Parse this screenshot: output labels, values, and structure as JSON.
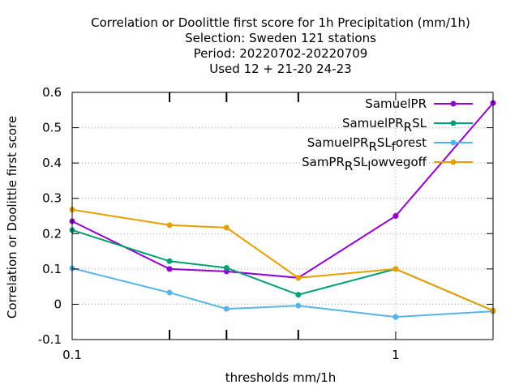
{
  "chart_data": {
    "type": "line",
    "title_lines": [
      "Correlation or Doolittle first score  for 1h Precipitation (mm/1h)",
      "Selection: Sweden    121 stations",
      "Period: 20220702-20220709",
      "Used  12 + 21-20 24-23"
    ],
    "xlabel": "thresholds mm/1h",
    "ylabel": "Correlation or Doolittle first score",
    "x_scale": "log",
    "xlim": [
      0.1,
      2
    ],
    "ylim": [
      -0.1,
      0.6
    ],
    "x_ticks": [
      {
        "value": 0.1,
        "label": "0.1"
      },
      {
        "value": 1,
        "label": "1"
      }
    ],
    "x_minor_ticks": [
      0.2,
      0.3,
      0.5
    ],
    "y_ticks": [
      {
        "value": -0.1,
        "label": "-0.1"
      },
      {
        "value": 0,
        "label": "0"
      },
      {
        "value": 0.1,
        "label": "0.1"
      },
      {
        "value": 0.2,
        "label": "0.2"
      },
      {
        "value": 0.3,
        "label": "0.3"
      },
      {
        "value": 0.4,
        "label": "0.4"
      },
      {
        "value": 0.5,
        "label": "0.5"
      },
      {
        "value": 0.6,
        "label": "0.6"
      }
    ],
    "grid": true,
    "legend_position": "top-right",
    "x": [
      0.1,
      0.2,
      0.3,
      0.5,
      1,
      2
    ],
    "series": [
      {
        "name": "SamuelPR",
        "legend_main": "SamuelPR",
        "legend_parts": [],
        "color": "#9400d3",
        "values": [
          0.235,
          0.1,
          0.093,
          0.075,
          0.25,
          0.57
        ]
      },
      {
        "name": "SamuelPR_R SL",
        "legend_main": "SamuelPR",
        "legend_parts": [
          {
            "sub": "R"
          },
          {
            "text": "SL"
          }
        ],
        "color": "#009e73",
        "values": [
          0.21,
          0.122,
          0.103,
          0.027,
          0.1,
          -0.018
        ]
      },
      {
        "name": "SamuelPR_R SL_f orest",
        "legend_main": "SamuelPR",
        "legend_parts": [
          {
            "sub": "R"
          },
          {
            "text": "SL"
          },
          {
            "sub": "f"
          },
          {
            "text": "orest"
          }
        ],
        "color": "#56b4e9",
        "values": [
          0.102,
          0.033,
          -0.013,
          -0.004,
          -0.036,
          -0.02
        ]
      },
      {
        "name": "SamPR_R SL_l owvegoff",
        "legend_main": "SamPR",
        "legend_parts": [
          {
            "sub": "R"
          },
          {
            "text": "SL"
          },
          {
            "sub": "l"
          },
          {
            "text": "owvegoff"
          }
        ],
        "color": "#e69f00",
        "values": [
          0.268,
          0.224,
          0.217,
          0.075,
          0.1,
          -0.018
        ]
      }
    ]
  }
}
